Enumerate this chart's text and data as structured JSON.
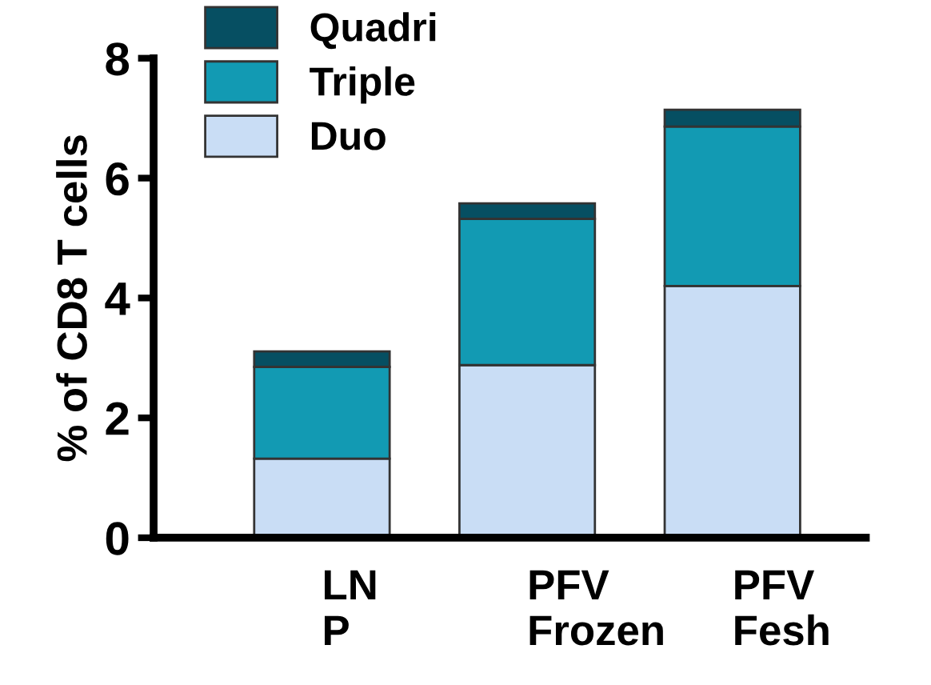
{
  "chart_data": {
    "type": "bar",
    "stacked": true,
    "ylabel": "% of CD8 T cells",
    "categories": [
      "LN\nP",
      "PFV\nFrozen",
      "PFV\nFesh"
    ],
    "series": [
      {
        "name": "Duo",
        "color": "#c9ddf5",
        "values": [
          1.32,
          2.88,
          4.2
        ]
      },
      {
        "name": "Triple",
        "color": "#129ab3",
        "values": [
          1.53,
          2.44,
          2.66
        ]
      },
      {
        "name": "Quadri",
        "color": "#064f62",
        "values": [
          0.26,
          0.26,
          0.28
        ]
      }
    ],
    "ylim": [
      0,
      8
    ],
    "yticks": [
      0,
      2,
      4,
      6,
      8
    ],
    "grid": false,
    "legend": "top left"
  }
}
